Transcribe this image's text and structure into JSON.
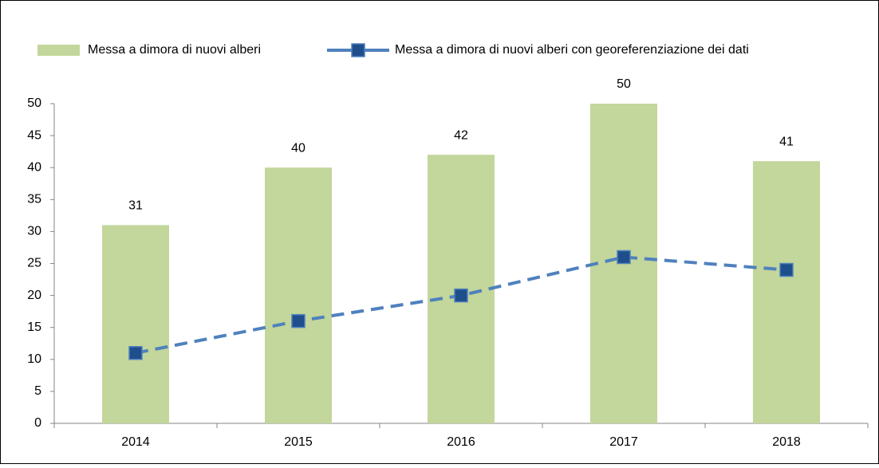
{
  "chart_data": {
    "type": "bar",
    "categories": [
      "2014",
      "2015",
      "2016",
      "2017",
      "2018"
    ],
    "series": [
      {
        "name": "Messa a dimora di nuovi alberi",
        "type": "bar",
        "color": "#c3d69b",
        "values": [
          31,
          40,
          42,
          50,
          41
        ],
        "show_labels": true
      },
      {
        "name": "Messa a dimora di nuovi alberi con georeferenziazione dei dati",
        "type": "line",
        "color": "#4f81bd",
        "marker_color": "#1f4e8c",
        "dashed": true,
        "values": [
          11,
          16,
          20,
          26,
          24
        ],
        "show_labels": false
      }
    ],
    "ylim": [
      0,
      50
    ],
    "yticks": [
      0,
      5,
      10,
      15,
      20,
      25,
      30,
      35,
      40,
      45,
      50
    ],
    "grid": false,
    "legend": "top"
  }
}
